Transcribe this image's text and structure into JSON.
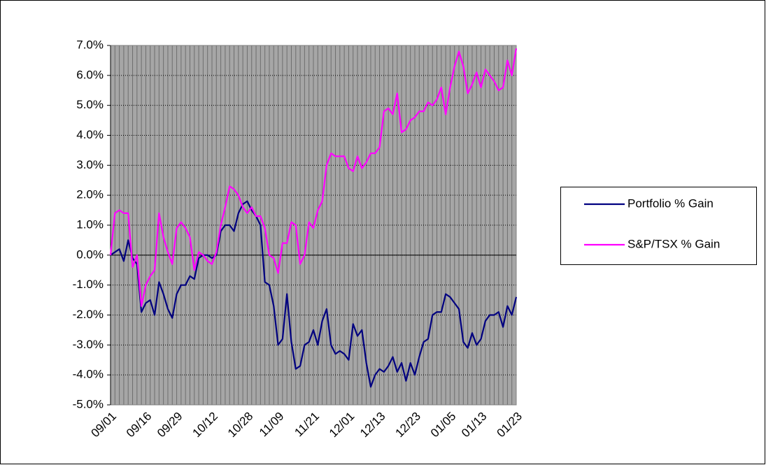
{
  "chart_data": {
    "type": "line",
    "categories": [
      "09/01",
      null,
      null,
      null,
      null,
      null,
      null,
      null,
      "09/16",
      null,
      null,
      null,
      null,
      null,
      null,
      "09/29",
      null,
      null,
      null,
      null,
      null,
      null,
      null,
      "10/12",
      null,
      null,
      null,
      null,
      null,
      null,
      null,
      "10/28",
      null,
      null,
      null,
      null,
      null,
      null,
      "11/09",
      null,
      null,
      null,
      null,
      null,
      null,
      null,
      "11/21",
      null,
      null,
      null,
      null,
      null,
      null,
      null,
      "12/01",
      null,
      null,
      null,
      null,
      null,
      null,
      "12/13",
      null,
      null,
      null,
      null,
      null,
      null,
      null,
      "12/23",
      null,
      null,
      null,
      null,
      null,
      null,
      null,
      "01/05",
      null,
      null,
      null,
      null,
      null,
      null,
      "01/13",
      null,
      null,
      null,
      null,
      null,
      null,
      null,
      "01/23"
    ],
    "series": [
      {
        "name": "Portfolio % Gain",
        "color": "#000080",
        "values": [
          0.0,
          0.1,
          0.2,
          -0.2,
          0.5,
          -0.1,
          -0.3,
          -1.9,
          -1.6,
          -1.5,
          -2.0,
          -0.9,
          -1.3,
          -1.8,
          -2.1,
          -1.3,
          -1.0,
          -1.0,
          -0.7,
          -0.8,
          -0.1,
          0.0,
          0.0,
          -0.1,
          0.0,
          0.8,
          1.0,
          1.0,
          0.8,
          1.4,
          1.7,
          1.8,
          1.5,
          1.3,
          1.0,
          -0.9,
          -1.0,
          -1.7,
          -3.0,
          -2.8,
          -1.3,
          -2.9,
          -3.8,
          -3.7,
          -3.0,
          -2.9,
          -2.5,
          -3.0,
          -2.2,
          -1.8,
          -3.0,
          -3.3,
          -3.2,
          -3.3,
          -3.5,
          -2.3,
          -2.7,
          -2.5,
          -3.6,
          -4.4,
          -4.0,
          -3.8,
          -3.9,
          -3.7,
          -3.4,
          -3.9,
          -3.6,
          -4.2,
          -3.6,
          -4.0,
          -3.4,
          -2.9,
          -2.8,
          -2.0,
          -1.9,
          -1.9,
          -1.3,
          -1.4,
          -1.6,
          -1.8,
          -2.9,
          -3.1,
          -2.6,
          -3.0,
          -2.8,
          -2.2,
          -2.0,
          -2.0,
          -1.9,
          -2.4,
          -1.7,
          -2.0,
          -1.4
        ]
      },
      {
        "name": "S&P/TSX % Gain",
        "color": "#ff00ff",
        "values": [
          0.0,
          1.4,
          1.5,
          1.4,
          1.4,
          -0.4,
          0.0,
          -1.7,
          -1.0,
          -0.7,
          -0.5,
          1.4,
          0.6,
          0.1,
          -0.3,
          0.9,
          1.1,
          0.9,
          0.6,
          -0.5,
          0.1,
          0.0,
          -0.2,
          -0.3,
          0.1,
          1.0,
          1.6,
          2.3,
          2.2,
          2.0,
          1.6,
          1.4,
          1.6,
          1.3,
          1.3,
          0.9,
          0.0,
          -0.1,
          -0.6,
          0.4,
          0.4,
          1.1,
          1.0,
          -0.3,
          0.0,
          1.1,
          0.9,
          1.5,
          1.8,
          3.0,
          3.4,
          3.3,
          3.3,
          3.3,
          2.9,
          2.8,
          3.3,
          2.9,
          3.1,
          3.4,
          3.4,
          3.6,
          4.8,
          4.9,
          4.7,
          5.4,
          4.1,
          4.2,
          4.5,
          4.6,
          4.8,
          4.8,
          5.1,
          5.0,
          5.2,
          5.6,
          4.7,
          5.6,
          6.3,
          6.8,
          6.3,
          5.4,
          5.7,
          6.1,
          5.6,
          6.2,
          6.0,
          5.8,
          5.5,
          5.6,
          6.5,
          6.0,
          6.9
        ]
      }
    ],
    "ylim": [
      -5,
      7
    ],
    "yticks": [
      {
        "value": -5,
        "label": "-5.0%"
      },
      {
        "value": -4,
        "label": "-4.0%"
      },
      {
        "value": -3,
        "label": "-3.0%"
      },
      {
        "value": -2,
        "label": "-2.0%"
      },
      {
        "value": -1,
        "label": "-1.0%"
      },
      {
        "value": 0,
        "label": "0.0%"
      },
      {
        "value": 1,
        "label": "1.0%"
      },
      {
        "value": 2,
        "label": "2.0%"
      },
      {
        "value": 3,
        "label": "3.0%"
      },
      {
        "value": 4,
        "label": "4.0%"
      },
      {
        "value": 5,
        "label": "5.0%"
      },
      {
        "value": 6,
        "label": "6.0%"
      },
      {
        "value": 7,
        "label": "7.0%"
      }
    ],
    "grid": true,
    "legend": "right"
  }
}
